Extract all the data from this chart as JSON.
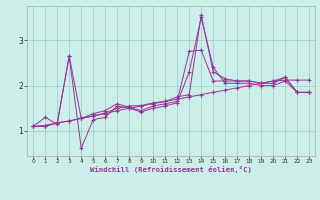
{
  "xlabel": "Windchill (Refroidissement éolien,°C)",
  "bg_color": "#cceee8",
  "line_color": "#993399",
  "grid_color": "#99cccc",
  "xlim": [
    -0.5,
    23.5
  ],
  "ylim": [
    0.45,
    3.75
  ],
  "yticks": [
    1,
    2,
    3
  ],
  "xticks": [
    0,
    1,
    2,
    3,
    4,
    5,
    6,
    7,
    8,
    9,
    10,
    11,
    12,
    13,
    14,
    15,
    16,
    17,
    18,
    19,
    20,
    21,
    22,
    23
  ],
  "lines": [
    [
      1.1,
      1.3,
      1.15,
      2.65,
      0.62,
      1.25,
      1.3,
      1.55,
      1.5,
      1.42,
      1.5,
      1.55,
      1.62,
      2.3,
      3.5,
      2.4,
      2.05,
      2.05,
      2.05,
      2.0,
      2.0,
      2.1,
      1.85,
      1.85
    ],
    [
      1.1,
      1.12,
      1.18,
      1.22,
      1.28,
      1.33,
      1.38,
      1.45,
      1.5,
      1.55,
      1.6,
      1.65,
      1.7,
      1.75,
      1.8,
      1.85,
      1.9,
      1.95,
      2.0,
      2.05,
      2.1,
      2.12,
      2.12,
      2.12
    ],
    [
      1.1,
      1.12,
      1.18,
      1.22,
      1.28,
      1.33,
      1.4,
      1.5,
      1.55,
      1.56,
      1.62,
      1.65,
      1.75,
      1.8,
      3.55,
      2.3,
      2.15,
      2.1,
      2.1,
      2.05,
      2.1,
      2.18,
      1.85,
      1.85
    ],
    [
      1.1,
      1.1,
      1.18,
      2.65,
      1.28,
      1.38,
      1.45,
      1.6,
      1.52,
      1.45,
      1.55,
      1.6,
      1.65,
      2.75,
      2.78,
      2.1,
      2.1,
      2.1,
      2.1,
      2.05,
      2.05,
      2.18,
      1.85,
      1.85
    ]
  ]
}
